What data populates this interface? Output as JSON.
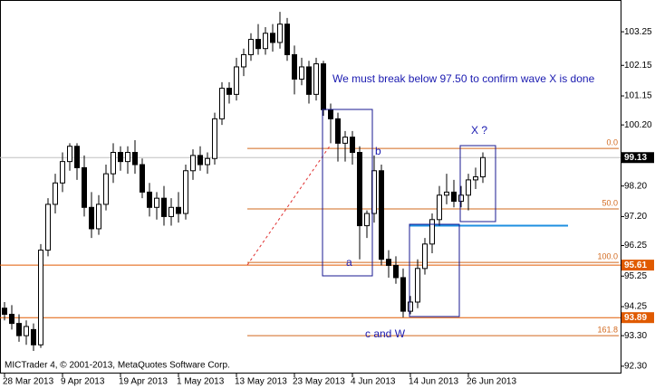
{
  "chart_data": {
    "type": "candlestick",
    "watermark": "MICTrader 4, © 2001-2013, MetaQuotes Software Corp.",
    "annotations": [
      "We must break below 97.50 to confirm wave X is done",
      "X ?",
      "a",
      "b",
      "c and W"
    ],
    "x": [
      "28 Mar 2013",
      null,
      null,
      null,
      null,
      null,
      null,
      null,
      "9 Apr 2013",
      null,
      null,
      null,
      null,
      null,
      null,
      null,
      "19 Apr 2013",
      null,
      null,
      null,
      null,
      null,
      null,
      null,
      "1 May 2013",
      null,
      null,
      null,
      null,
      null,
      null,
      null,
      "13 May 2013",
      null,
      null,
      null,
      null,
      null,
      null,
      null,
      "23 May 2013",
      null,
      null,
      null,
      null,
      null,
      null,
      null,
      "4 Jun 2013",
      null,
      null,
      null,
      null,
      null,
      null,
      null,
      "14 Jun 2013",
      null,
      null,
      null,
      null,
      null,
      null,
      null,
      "26 Jun 2013",
      null,
      null
    ],
    "open": [
      94.2,
      94.0,
      93.7,
      93.3,
      93.5,
      93.0,
      96.1,
      97.6,
      98.3,
      99.0,
      99.5,
      98.8,
      97.5,
      96.8,
      97.6,
      98.6,
      99.3,
      99.0,
      99.3,
      98.9,
      98.0,
      97.5,
      97.8,
      97.2,
      97.5,
      97.3,
      98.7,
      99.2,
      98.9,
      99.1,
      100.4,
      101.4,
      101.2,
      102.1,
      102.5,
      103.0,
      102.7,
      103.2,
      102.9,
      103.5,
      102.5,
      101.7,
      102.1,
      101.2,
      102.2,
      100.7,
      100.4,
      99.6,
      99.8,
      99.3,
      96.9,
      97.3,
      98.7,
      95.8,
      95.6,
      95.2,
      94.1,
      94.4,
      95.5,
      96.3,
      97.1,
      97.9,
      98.0,
      97.7,
      97.9,
      98.4,
      98.5
    ],
    "high": [
      94.4,
      94.3,
      94.0,
      93.8,
      93.7,
      96.3,
      97.8,
      98.6,
      99.3,
      99.6,
      99.6,
      99.2,
      98.0,
      97.9,
      98.9,
      99.6,
      99.5,
      99.5,
      99.7,
      99.1,
      98.3,
      98.0,
      98.2,
      97.8,
      98.0,
      98.9,
      99.4,
      99.5,
      99.3,
      100.6,
      101.6,
      101.6,
      102.4,
      102.7,
      103.2,
      103.5,
      103.4,
      103.5,
      103.9,
      103.7,
      102.8,
      102.4,
      102.3,
      102.4,
      102.3,
      100.9,
      100.6,
      100.0,
      100.0,
      99.5,
      97.4,
      99.2,
      98.9,
      96.1,
      95.9,
      95.5,
      94.6,
      95.8,
      96.5,
      97.3,
      98.2,
      98.6,
      98.4,
      98.2,
      98.6,
      98.8,
      99.3
    ],
    "low": [
      93.8,
      93.5,
      93.1,
      93.0,
      92.8,
      92.9,
      95.9,
      97.3,
      98.0,
      98.7,
      98.4,
      97.2,
      96.5,
      96.6,
      97.4,
      98.3,
      98.7,
      98.6,
      98.6,
      97.8,
      97.2,
      97.1,
      96.9,
      96.9,
      97.0,
      97.1,
      98.4,
      98.7,
      98.6,
      98.9,
      100.2,
      100.9,
      101.0,
      101.8,
      102.3,
      102.5,
      102.5,
      102.6,
      102.7,
      102.3,
      101.2,
      101.5,
      100.9,
      101.0,
      100.5,
      99.6,
      99.0,
      99.0,
      98.9,
      95.8,
      96.5,
      97.0,
      95.6,
      95.2,
      95.0,
      93.9,
      94.0,
      94.2,
      95.3,
      96.0,
      96.9,
      97.6,
      97.5,
      97.5,
      97.4,
      98.1,
      98.3
    ],
    "close": [
      94.0,
      93.7,
      93.3,
      93.6,
      93.0,
      96.1,
      97.6,
      98.3,
      99.0,
      99.5,
      98.8,
      97.5,
      96.8,
      97.6,
      98.6,
      99.3,
      99.0,
      99.3,
      98.9,
      98.0,
      97.5,
      97.8,
      97.2,
      97.5,
      97.3,
      98.7,
      99.2,
      98.9,
      99.1,
      100.4,
      101.4,
      101.2,
      102.1,
      102.5,
      103.0,
      102.7,
      103.2,
      102.9,
      103.5,
      102.5,
      101.7,
      102.1,
      101.2,
      102.2,
      100.7,
      100.4,
      99.6,
      99.8,
      99.3,
      96.9,
      97.3,
      98.7,
      95.8,
      95.6,
      95.2,
      94.1,
      94.4,
      95.5,
      96.3,
      97.1,
      97.9,
      98.0,
      97.7,
      97.9,
      98.4,
      98.5,
      99.13
    ],
    "ylim": [
      92.06,
      104.29
    ],
    "yticks": [
      103.25,
      102.15,
      101.15,
      {
        "value": 100.2,
        "label": "100.20"
      },
      {
        "value": 98.2,
        "label": "98.20"
      },
      {
        "value": 97.2,
        "label": "97.20"
      },
      96.25,
      95.25,
      94.25,
      {
        "value": 93.3,
        "label": "93.30"
      },
      {
        "value": 92.3,
        "label": "92.30"
      }
    ],
    "price_lines": [
      {
        "value": 99.13,
        "color": "#c0c0c0",
        "label_bg": "#000000"
      },
      {
        "value": 95.61,
        "color": "#e05a00",
        "label_bg": "#e05a00"
      },
      {
        "value": 93.89,
        "color": "#e05a00",
        "label_bg": "#e05a00"
      }
    ],
    "fib_levels": [
      {
        "value": 99.43,
        "label": "0.0"
      },
      {
        "value": 97.45,
        "label": "50.0"
      },
      {
        "value": 95.7,
        "label": "100.0"
      },
      {
        "value": 93.3,
        "label": "161.8"
      }
    ],
    "fib_color": "#d2691e",
    "support_line": {
      "value": 96.9,
      "color": "#1e8fe0"
    }
  }
}
